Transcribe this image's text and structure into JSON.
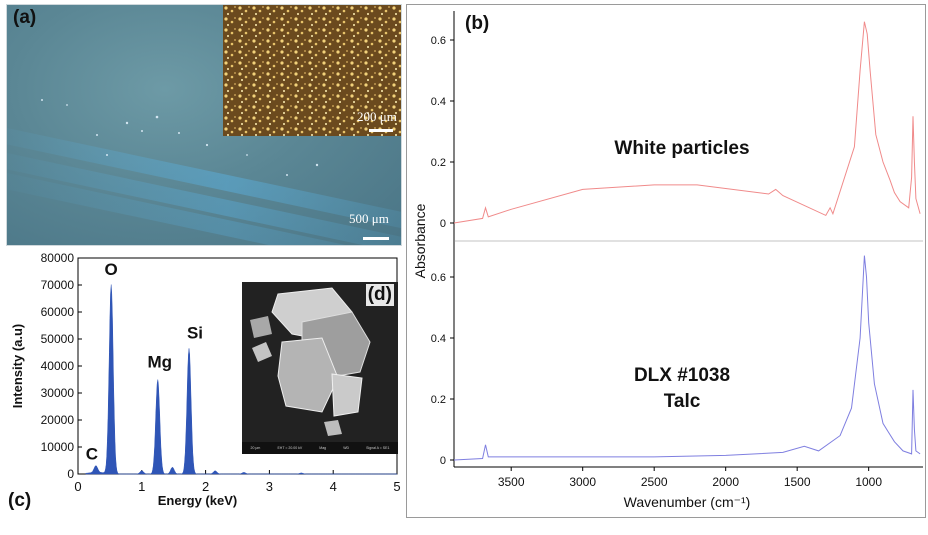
{
  "panel_a": {
    "label": "(a)",
    "scale_main": "500 μm",
    "scale_inset": "200 μm"
  },
  "panel_c": {
    "label": "(c)",
    "inset_label": "(d)",
    "sem_footer": [
      "20 μm",
      "EHT = 20.00 kV",
      "Mag",
      "WD",
      "Signal A = SE1"
    ],
    "peak_labels": [
      "C",
      "O",
      "Mg",
      "Si"
    ]
  },
  "panel_b": {
    "label": "(b)",
    "trace1_label": "White particles",
    "trace2_label_line1": "DLX #1038",
    "trace2_label_line2": "Talc",
    "colors": {
      "trace1": "#f08a8a",
      "trace2": "#7f7fe0"
    }
  },
  "chart_data": [
    {
      "type": "area",
      "title": "",
      "xlabel": "Energy (keV)",
      "ylabel": "Intensity (a.u)",
      "xlim": [
        0,
        5
      ],
      "ylim": [
        0,
        80000
      ],
      "xticks": [
        0,
        1,
        2,
        3,
        4,
        5
      ],
      "yticks": [
        0,
        10000,
        20000,
        30000,
        40000,
        50000,
        60000,
        70000,
        80000
      ],
      "peaks": [
        {
          "element": "C",
          "energy": 0.28,
          "intensity": 2500
        },
        {
          "element": "O",
          "energy": 0.52,
          "intensity": 70000
        },
        {
          "element": "Mg",
          "energy": 1.25,
          "intensity": 35000
        },
        {
          "element": "Si",
          "energy": 1.74,
          "intensity": 46500
        }
      ],
      "minor_peaks": [
        {
          "energy": 1.0,
          "intensity": 1200
        },
        {
          "energy": 1.48,
          "intensity": 2500
        },
        {
          "energy": 2.15,
          "intensity": 1200
        },
        {
          "energy": 2.6,
          "intensity": 600
        },
        {
          "energy": 3.5,
          "intensity": 400
        }
      ],
      "color": "#2f55b6"
    },
    {
      "type": "line",
      "xlabel": "Wavenumber (cm⁻¹)",
      "ylabel": "Absorbance",
      "xlim": [
        3900,
        620
      ],
      "xticks": [
        3500,
        3000,
        2500,
        2000,
        1500,
        1000
      ],
      "yticks_upper": [
        0,
        0.2,
        0.4,
        0.6
      ],
      "yticks_lower": [
        0,
        0.2,
        0.4,
        0.6
      ],
      "series": [
        {
          "name": "White particles",
          "x": [
            3900,
            3700,
            3680,
            3660,
            3500,
            3000,
            2500,
            2200,
            1700,
            1650,
            1600,
            1300,
            1270,
            1250,
            1100,
            1060,
            1030,
            1010,
            990,
            950,
            900,
            850,
            820,
            780,
            720,
            700,
            690,
            680,
            670,
            640
          ],
          "y": [
            0.0,
            0.015,
            0.05,
            0.02,
            0.045,
            0.11,
            0.125,
            0.125,
            0.095,
            0.11,
            0.09,
            0.025,
            0.05,
            0.03,
            0.25,
            0.5,
            0.66,
            0.62,
            0.5,
            0.29,
            0.2,
            0.14,
            0.1,
            0.07,
            0.05,
            0.15,
            0.35,
            0.2,
            0.08,
            0.03
          ]
        },
        {
          "name": "DLX #1038 Talc",
          "x": [
            3900,
            3700,
            3680,
            3660,
            3500,
            3000,
            2500,
            2000,
            1600,
            1450,
            1350,
            1200,
            1120,
            1060,
            1030,
            1015,
            1000,
            960,
            900,
            820,
            760,
            700,
            690,
            680,
            670,
            640
          ],
          "y": [
            0.0,
            0.005,
            0.05,
            0.01,
            0.01,
            0.01,
            0.01,
            0.015,
            0.025,
            0.045,
            0.03,
            0.08,
            0.17,
            0.4,
            0.67,
            0.6,
            0.45,
            0.25,
            0.12,
            0.06,
            0.03,
            0.02,
            0.23,
            0.1,
            0.03,
            0.02
          ]
        }
      ]
    }
  ]
}
